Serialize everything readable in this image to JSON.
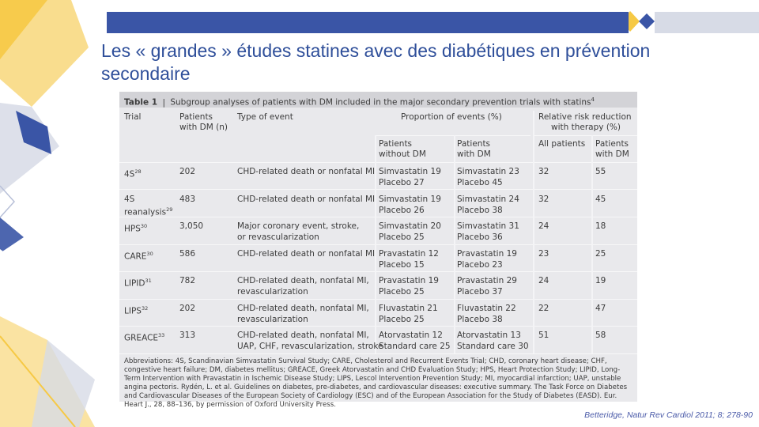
{
  "slide": {
    "title": "Les « grandes » études statines avec des diabétiques en prévention secondaire",
    "citation": "Betteridge, Natur Rev Cardiol 2011; 8; 278-90"
  },
  "table": {
    "caption_bold": "Table 1",
    "caption_text": "Subgroup analyses of patients with DM included in the major secondary prevention trials with statins",
    "caption_ref": "4",
    "headers": {
      "trial": "Trial",
      "patients_line1": "Patients",
      "patients_line2": "with DM (n)",
      "type": "Type of event",
      "proportion": "Proportion of events (%)",
      "rrr_line1": "Relative risk reduction",
      "rrr_line2": "with therapy (%)",
      "without_dm_line1": "Patients",
      "without_dm_line2": "without DM",
      "with_dm_line1": "Patients",
      "with_dm_line2": "with DM",
      "all_patients": "All patients",
      "rrr_dm_line1": "Patients",
      "rrr_dm_line2": "with DM"
    },
    "rows": [
      {
        "trial": "4S",
        "trial_ref": "28",
        "trial_line2": "",
        "n": "202",
        "event1": "CHD-related death or nonfatal MI",
        "event2": "",
        "wo1": "Simvastatin 19",
        "wo2": "Placebo 27",
        "w1": "Simvastatin 23",
        "w2": "Placebo 45",
        "all": "32",
        "dm": "55"
      },
      {
        "trial": "4S",
        "trial_ref": "",
        "trial_line2": "reanalysis",
        "trial_line2_ref": "29",
        "n": "483",
        "event1": "CHD-related death or nonfatal MI",
        "event2": "",
        "wo1": "Simvastatin 19",
        "wo2": "Placebo 26",
        "w1": "Simvastatin 24",
        "w2": "Placebo 38",
        "all": "32",
        "dm": "45"
      },
      {
        "trial": "HPS",
        "trial_ref": "30",
        "trial_line2": "",
        "n": "3,050",
        "event1": "Major coronary event, stroke,",
        "event2": "or revascularization",
        "wo1": "Simvastatin 20",
        "wo2": "Placebo 25",
        "w1": "Simvastatin 31",
        "w2": "Placebo 36",
        "all": "24",
        "dm": "18"
      },
      {
        "trial": "CARE",
        "trial_ref": "30",
        "trial_line2": "",
        "n": "586",
        "event1": "CHD-related death or nonfatal MI",
        "event2": "",
        "wo1": "Pravastatin 12",
        "wo2": "Placebo 15",
        "w1": "Pravastatin 19",
        "w2": "Placebo 23",
        "all": "23",
        "dm": "25"
      },
      {
        "trial": "LIPID",
        "trial_ref": "31",
        "trial_line2": "",
        "n": "782",
        "event1": "CHD-related death, nonfatal MI,",
        "event2": "revascularization",
        "wo1": "Pravastatin 19",
        "wo2": "Placebo 25",
        "w1": "Pravastatin 29",
        "w2": "Placebo 37",
        "all": "24",
        "dm": "19"
      },
      {
        "trial": "LIPS",
        "trial_ref": "32",
        "trial_line2": "",
        "n": "202",
        "event1": "CHD-related death, nonfatal MI,",
        "event2": "revascularization",
        "wo1": "Fluvastatin 21",
        "wo2": "Placebo 25",
        "w1": "Fluvastatin 22",
        "w2": "Placebo 38",
        "all": "22",
        "dm": "47"
      },
      {
        "trial": "GREACE",
        "trial_ref": "33",
        "trial_line2": "",
        "n": "313",
        "event1": "CHD-related death, nonfatal MI,",
        "event2": "UAP, CHF, revascularization, stroke",
        "wo1": "Atorvastatin 12",
        "wo2": "Standard care 25",
        "w1": "Atorvastatin 13",
        "w2": "Standard care 30",
        "all": "51",
        "dm": "58"
      }
    ],
    "abbreviations": "Abbreviations: 4S, Scandinavian Simvastatin Survival Study; CARE, Cholesterol and Recurrent Events Trial; CHD, coronary heart disease; CHF, congestive heart failure; DM, diabetes mellitus; GREACE, Greek Atorvastatin and CHD Evaluation Study; HPS, Heart Protection Study; LIPID, Long-Term Intervention with Pravastatin in Ischemic Disease Study; LIPS, Lescol Intervention Prevention Study; MI, myocardial infarction; UAP, unstable angina pectoris. Rydén, L. et al. Guidelines on diabetes, pre-diabetes, and cardiovascular diseases: executive summary. The Task Force on Diabetes and Cardiovascular Diseases of the European Society of Cardiology (ESC) and of the European Association for the Study of Diabetes (EASD). Eur. Heart J., 28, 88–136, by permission of Oxford University Press."
  },
  "colors": {
    "accent_blue": "#3a55a6",
    "title_blue": "#2f4f9a",
    "accent_yellow": "#f6c945",
    "light_gray_blue": "#d7dbe6"
  }
}
